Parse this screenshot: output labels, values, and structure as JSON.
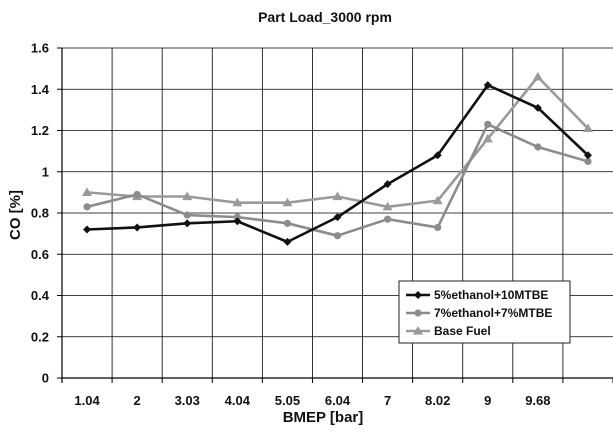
{
  "chart_data": {
    "type": "line",
    "title": "Part Load_3000 rpm",
    "xlabel": "BMEP [bar]",
    "ylabel": "CO [%]",
    "categories": [
      "1.04",
      "2",
      "3.03",
      "4.04",
      "5.05",
      "6.04",
      "7",
      "8.02",
      "9",
      "9.68",
      ""
    ],
    "ylim": [
      0,
      1.6
    ],
    "yticks": [
      "0",
      "0.2",
      "0.4",
      "0.6",
      "0.8",
      "1",
      "1.2",
      "1.4",
      "1.6"
    ],
    "grid": true,
    "legend_position": "bottom-right",
    "series": [
      {
        "name": "5%ethanol+10MTBE",
        "color": "#111111",
        "marker": "diamond",
        "values": [
          0.72,
          0.73,
          0.75,
          0.76,
          0.66,
          0.78,
          0.94,
          1.08,
          1.42,
          1.31,
          1.08
        ]
      },
      {
        "name": "7%ethanol+7%MTBE",
        "color": "#8c8c8c",
        "marker": "circle",
        "values": [
          0.83,
          0.89,
          0.79,
          0.78,
          0.75,
          0.69,
          0.77,
          0.73,
          1.23,
          1.12,
          1.05
        ]
      },
      {
        "name": "Base Fuel",
        "color": "#9a9a9a",
        "marker": "triangle",
        "values": [
          0.9,
          0.88,
          0.88,
          0.85,
          0.85,
          0.88,
          0.83,
          0.86,
          1.16,
          1.46,
          1.21
        ]
      }
    ]
  }
}
